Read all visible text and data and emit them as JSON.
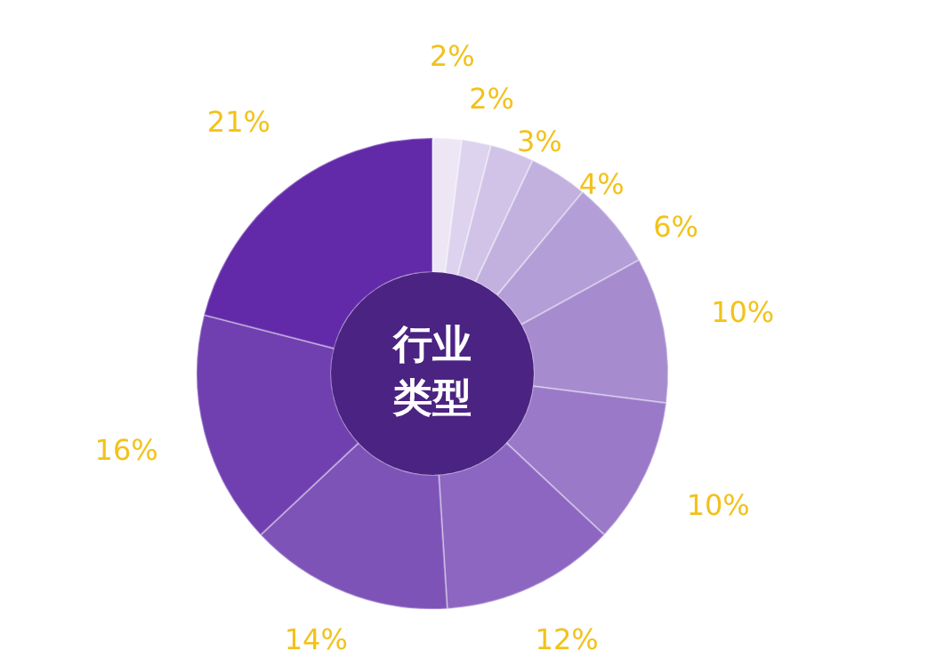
{
  "chart_data": {
    "type": "donut",
    "title": "行业类型",
    "categories": [
      null,
      null,
      null,
      null,
      null,
      null,
      null,
      null,
      null,
      null,
      null
    ],
    "values": [
      2,
      2,
      3,
      4,
      6,
      10,
      10,
      12,
      14,
      16,
      21
    ],
    "value_labels": [
      "2%",
      "2%",
      "3%",
      "4%",
      "6%",
      "10%",
      "10%",
      "12%",
      "14%",
      "16%",
      "21%"
    ],
    "colors": [
      "#ece6f5",
      "#ddd3ee",
      "#d0c3e7",
      "#c2b0df",
      "#b49ed7",
      "#a78bcf",
      "#9a79c8",
      "#8c66c0",
      "#7e53b8",
      "#7040b0",
      "#622aa8"
    ],
    "legend": false
  }
}
